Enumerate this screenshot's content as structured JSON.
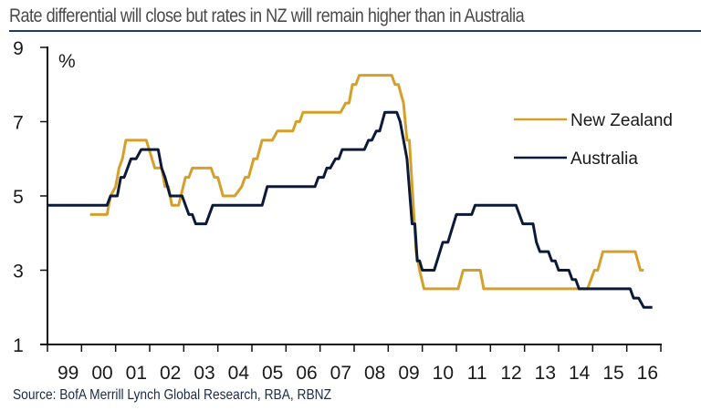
{
  "chart_data": {
    "type": "line",
    "title": "Rate differential will close but rates in NZ will remain higher than in Australia",
    "source": "Source: BofA Merrill Lynch Global Research, RBA, RBNZ",
    "ylabel": "%",
    "xlabel": "",
    "ylim": [
      1,
      9
    ],
    "yticks": [
      1,
      3,
      5,
      7,
      9
    ],
    "xlim": [
      1998,
      2016
    ],
    "x_tick_labels": [
      "99",
      "00",
      "01",
      "02",
      "03",
      "04",
      "05",
      "06",
      "07",
      "08",
      "09",
      "10",
      "11",
      "12",
      "13",
      "14",
      "15",
      "16"
    ],
    "grid": false,
    "legend_position": "right",
    "series": [
      {
        "name": "New Zealand",
        "color": "#d4a02a",
        "points": [
          [
            1999.25,
            4.5
          ],
          [
            1999.75,
            4.5
          ],
          [
            1999.85,
            5.0
          ],
          [
            2000.0,
            5.25
          ],
          [
            2000.1,
            5.75
          ],
          [
            2000.2,
            6.0
          ],
          [
            2000.3,
            6.5
          ],
          [
            2000.9,
            6.5
          ],
          [
            2001.15,
            5.75
          ],
          [
            2001.35,
            5.75
          ],
          [
            2001.45,
            5.25
          ],
          [
            2001.55,
            5.25
          ],
          [
            2001.65,
            4.75
          ],
          [
            2001.85,
            4.75
          ],
          [
            2002.05,
            5.5
          ],
          [
            2002.15,
            5.5
          ],
          [
            2002.25,
            5.75
          ],
          [
            2002.8,
            5.75
          ],
          [
            2002.9,
            5.5
          ],
          [
            2003.0,
            5.5
          ],
          [
            2003.15,
            5.0
          ],
          [
            2003.5,
            5.0
          ],
          [
            2003.7,
            5.25
          ],
          [
            2003.8,
            5.5
          ],
          [
            2003.9,
            5.5
          ],
          [
            2004.05,
            6.0
          ],
          [
            2004.15,
            6.0
          ],
          [
            2004.3,
            6.5
          ],
          [
            2004.6,
            6.5
          ],
          [
            2004.75,
            6.75
          ],
          [
            2005.2,
            6.75
          ],
          [
            2005.3,
            7.0
          ],
          [
            2005.4,
            7.0
          ],
          [
            2005.5,
            7.25
          ],
          [
            2006.6,
            7.25
          ],
          [
            2006.75,
            7.5
          ],
          [
            2006.85,
            7.5
          ],
          [
            2006.95,
            8.0
          ],
          [
            2007.05,
            8.0
          ],
          [
            2007.15,
            8.25
          ],
          [
            2008.1,
            8.25
          ],
          [
            2008.2,
            8.0
          ],
          [
            2008.3,
            8.0
          ],
          [
            2008.45,
            7.5
          ],
          [
            2008.55,
            6.5
          ],
          [
            2008.62,
            6.5
          ],
          [
            2008.72,
            5.0
          ],
          [
            2008.82,
            3.5
          ],
          [
            2008.92,
            3.0
          ],
          [
            2009.05,
            2.5
          ],
          [
            2010.05,
            2.5
          ],
          [
            2010.2,
            3.0
          ],
          [
            2010.7,
            3.0
          ],
          [
            2010.8,
            2.5
          ],
          [
            2013.05,
            2.5
          ],
          [
            2013.85,
            2.5
          ],
          [
            2014.05,
            3.0
          ],
          [
            2014.15,
            3.0
          ],
          [
            2014.3,
            3.5
          ],
          [
            2015.25,
            3.5
          ],
          [
            2015.4,
            3.0
          ],
          [
            2015.5,
            3.0
          ]
        ]
      },
      {
        "name": "Australia",
        "color": "#0c1a3a",
        "points": [
          [
            1998.0,
            4.75
          ],
          [
            1999.75,
            4.75
          ],
          [
            1999.85,
            5.0
          ],
          [
            2000.05,
            5.0
          ],
          [
            2000.15,
            5.5
          ],
          [
            2000.25,
            5.5
          ],
          [
            2000.45,
            6.0
          ],
          [
            2000.6,
            6.0
          ],
          [
            2000.75,
            6.25
          ],
          [
            2001.25,
            6.25
          ],
          [
            2001.35,
            5.75
          ],
          [
            2001.45,
            5.5
          ],
          [
            2001.6,
            5.0
          ],
          [
            2001.95,
            5.0
          ],
          [
            2002.15,
            4.5
          ],
          [
            2002.25,
            4.5
          ],
          [
            2002.35,
            4.25
          ],
          [
            2002.65,
            4.25
          ],
          [
            2002.85,
            4.75
          ],
          [
            2004.3,
            4.75
          ],
          [
            2004.45,
            5.25
          ],
          [
            2005.85,
            5.25
          ],
          [
            2005.95,
            5.5
          ],
          [
            2006.1,
            5.5
          ],
          [
            2006.2,
            5.75
          ],
          [
            2006.3,
            5.75
          ],
          [
            2006.45,
            6.0
          ],
          [
            2006.55,
            6.0
          ],
          [
            2006.65,
            6.25
          ],
          [
            2007.3,
            6.25
          ],
          [
            2007.42,
            6.5
          ],
          [
            2007.52,
            6.5
          ],
          [
            2007.65,
            6.75
          ],
          [
            2007.75,
            6.75
          ],
          [
            2007.9,
            7.25
          ],
          [
            2008.25,
            7.25
          ],
          [
            2008.35,
            7.0
          ],
          [
            2008.55,
            6.0
          ],
          [
            2008.7,
            4.25
          ],
          [
            2008.78,
            4.25
          ],
          [
            2008.85,
            3.25
          ],
          [
            2008.92,
            3.25
          ],
          [
            2009.0,
            3.0
          ],
          [
            2009.35,
            3.0
          ],
          [
            2009.6,
            3.75
          ],
          [
            2009.75,
            3.75
          ],
          [
            2010.0,
            4.5
          ],
          [
            2010.45,
            4.5
          ],
          [
            2010.55,
            4.75
          ],
          [
            2011.75,
            4.75
          ],
          [
            2011.95,
            4.25
          ],
          [
            2012.25,
            4.25
          ],
          [
            2012.35,
            3.75
          ],
          [
            2012.45,
            3.5
          ],
          [
            2012.7,
            3.5
          ],
          [
            2012.8,
            3.25
          ],
          [
            2012.9,
            3.25
          ],
          [
            2013.0,
            3.0
          ],
          [
            2013.3,
            3.0
          ],
          [
            2013.4,
            2.75
          ],
          [
            2013.5,
            2.75
          ],
          [
            2013.6,
            2.5
          ],
          [
            2015.1,
            2.5
          ],
          [
            2015.2,
            2.25
          ],
          [
            2015.35,
            2.25
          ],
          [
            2015.5,
            2.0
          ],
          [
            2015.75,
            2.0
          ]
        ]
      }
    ]
  }
}
